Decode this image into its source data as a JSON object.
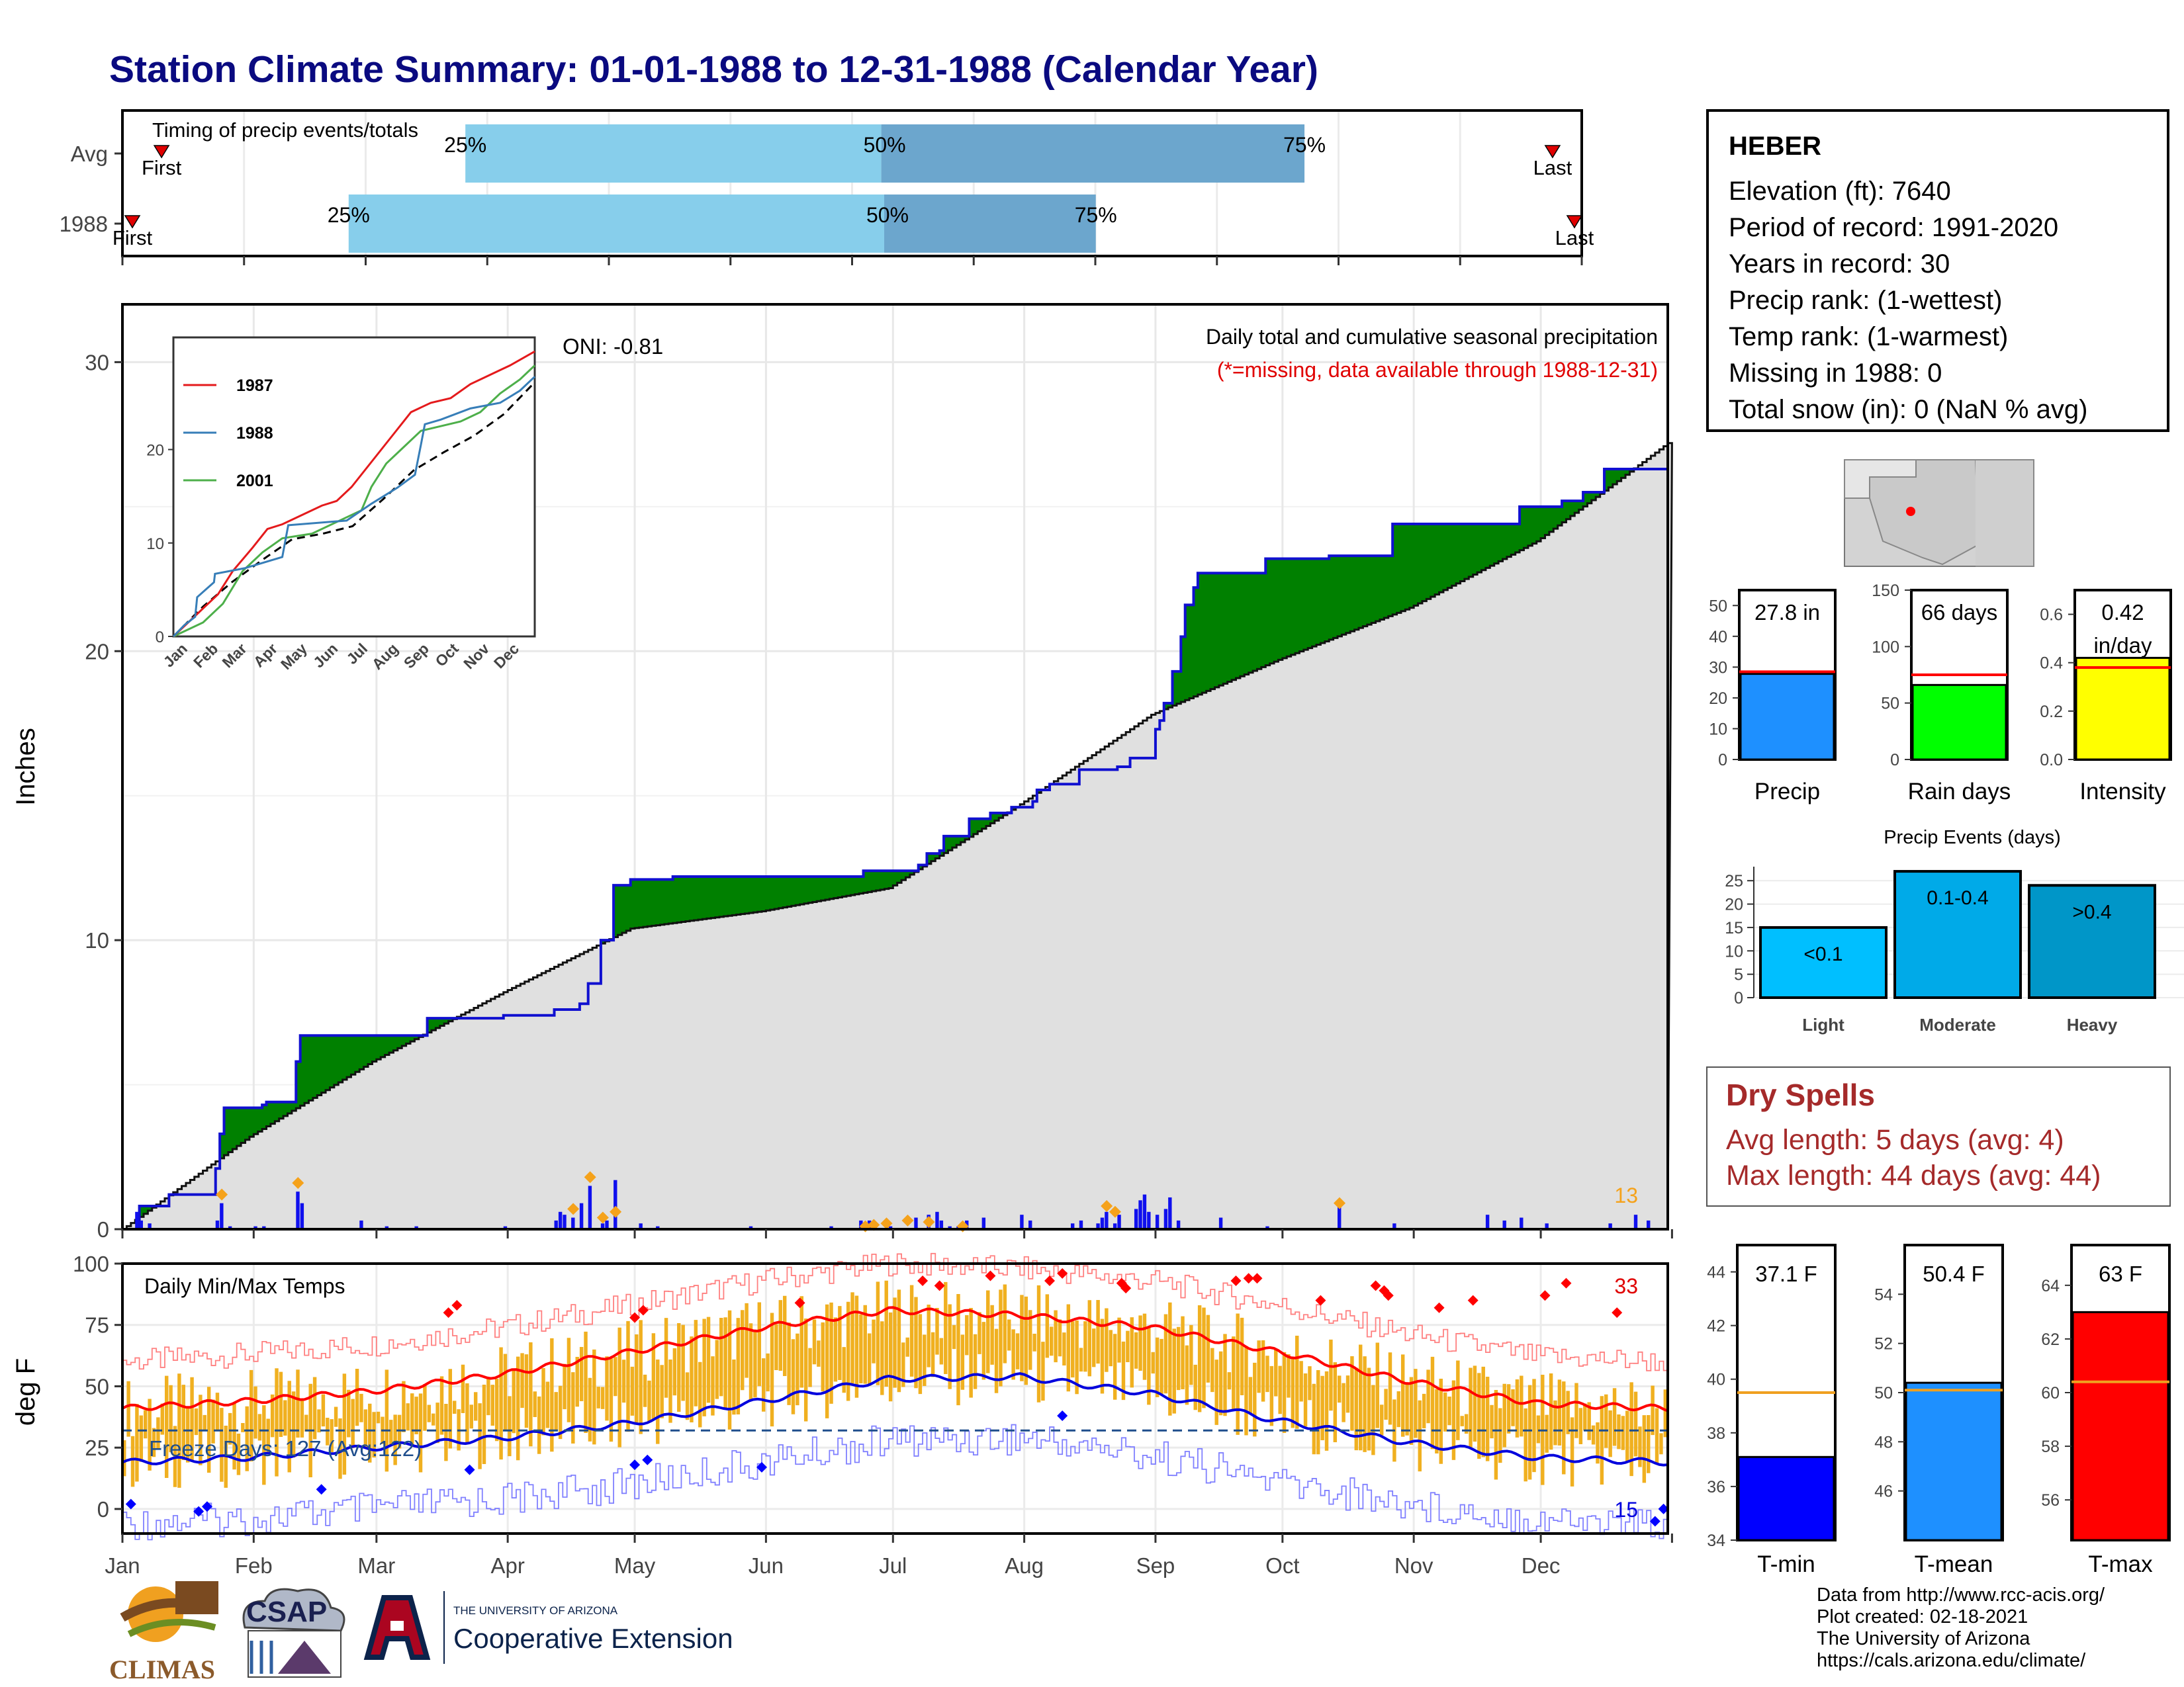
{
  "title": "Station Climate Summary: 01-01-1988 to 12-31-1988 (Calendar Year)",
  "colors": {
    "green_fill": "#008000",
    "brown_fill": "#7f5700",
    "normal_fill": "#e0e0e0",
    "blue_line": "#1010d0",
    "bar_light": "#87ceeb",
    "bar_dark": "#6ca6cd",
    "tmax": "#ff0000",
    "tmin": "#0000dd",
    "range_bar": "#f0b020"
  },
  "timing": {
    "title": "Timing of precip events/totals",
    "rows": [
      {
        "label": "Avg",
        "first": "First",
        "last": "Last",
        "p25": "25%",
        "p50": "50%",
        "p75": "75%",
        "q25": 0.235,
        "q50": 0.52,
        "q75": 0.81,
        "firstPos": 0.02,
        "lastPos": 0.98
      },
      {
        "label": "1988",
        "first": "First",
        "last": "Last",
        "p25": "25%",
        "p50": "50%",
        "p75": "75%",
        "q25": 0.155,
        "q50": 0.522,
        "q75": 0.667,
        "firstPos": 0.0,
        "lastPos": 0.995
      }
    ]
  },
  "precip_plot": {
    "ylabel": "Inches",
    "yticks": [
      "0",
      "10",
      "20",
      "30"
    ],
    "ymax": 32,
    "note_line1": "Daily total and cumulative seasonal precipitation",
    "note_line2": "(*=missing, data available through 1988-12-31)",
    "oni": "ONI: -0.81",
    "count_label": "13",
    "cum_1988": [
      [
        0,
        0
      ],
      [
        4,
        0.8
      ],
      [
        11,
        0.8
      ],
      [
        11,
        1.2
      ],
      [
        22,
        1.2
      ],
      [
        22,
        2.1
      ],
      [
        23,
        3.3
      ],
      [
        24,
        4.2
      ],
      [
        33,
        4.3
      ],
      [
        34,
        4.4
      ],
      [
        41,
        4.4
      ],
      [
        41,
        5.8
      ],
      [
        42,
        6.7
      ],
      [
        62,
        6.7
      ],
      [
        72,
        6.7
      ],
      [
        72,
        7.3
      ],
      [
        80,
        7.3
      ],
      [
        90,
        7.4
      ],
      [
        100,
        7.4
      ],
      [
        102,
        7.6
      ],
      [
        104,
        7.6
      ],
      [
        108,
        7.8
      ],
      [
        110,
        8.5
      ],
      [
        113,
        10.0
      ],
      [
        116,
        10.2
      ],
      [
        116,
        11.9
      ],
      [
        120,
        12.1
      ],
      [
        130,
        12.2
      ],
      [
        175,
        12.2
      ],
      [
        175,
        12.4
      ],
      [
        180,
        12.4
      ],
      [
        188,
        12.6
      ],
      [
        190,
        13.0
      ],
      [
        193,
        13.1
      ],
      [
        194,
        13.6
      ],
      [
        200,
        14.2
      ],
      [
        205,
        14.4
      ],
      [
        210,
        14.6
      ],
      [
        215,
        14.8
      ],
      [
        216,
        15.2
      ],
      [
        219,
        15.4
      ],
      [
        226,
        15.9
      ],
      [
        235,
        16.0
      ],
      [
        238,
        16.3
      ],
      [
        244,
        16.6
      ],
      [
        244,
        17.3
      ],
      [
        245,
        17.6
      ],
      [
        246,
        18.2
      ],
      [
        248,
        19.3
      ],
      [
        250,
        20.5
      ],
      [
        251,
        21.6
      ],
      [
        253,
        22.2
      ],
      [
        254,
        22.7
      ],
      [
        265,
        22.7
      ],
      [
        270,
        22.7
      ],
      [
        270,
        23.2
      ],
      [
        285,
        23.3
      ],
      [
        300,
        23.3
      ],
      [
        300,
        24.4
      ],
      [
        330,
        24.4
      ],
      [
        330,
        25.0
      ],
      [
        340,
        25.2
      ],
      [
        345,
        25.5
      ],
      [
        350,
        25.5
      ],
      [
        350,
        26.3
      ],
      [
        360,
        26.3
      ],
      [
        365,
        27.8
      ]
    ],
    "normal_cum": [
      [
        0,
        0
      ],
      [
        30,
        3.2
      ],
      [
        59,
        5.8
      ],
      [
        90,
        8.2
      ],
      [
        120,
        10.4
      ],
      [
        151,
        11.0
      ],
      [
        181,
        11.8
      ],
      [
        212,
        14.7
      ],
      [
        243,
        17.8
      ],
      [
        273,
        19.7
      ],
      [
        304,
        21.5
      ],
      [
        334,
        23.8
      ],
      [
        365,
        27.2
      ]
    ],
    "daily_bars": [
      [
        3,
        0.6
      ],
      [
        4,
        0.3
      ],
      [
        6,
        0.2
      ],
      [
        22,
        0.3
      ],
      [
        23,
        0.9
      ],
      [
        25,
        0.1
      ],
      [
        31,
        0.1
      ],
      [
        33,
        0.1
      ],
      [
        41,
        1.3
      ],
      [
        42,
        0.9
      ],
      [
        56,
        0.3
      ],
      [
        62,
        0.1
      ],
      [
        69,
        0.1
      ],
      [
        90,
        0.1
      ],
      [
        102,
        0.3
      ],
      [
        103,
        0.6
      ],
      [
        104,
        0.5
      ],
      [
        106,
        0.4
      ],
      [
        108,
        0.9
      ],
      [
        110,
        1.5
      ],
      [
        113,
        0.2
      ],
      [
        114,
        0.3
      ],
      [
        116,
        1.7
      ],
      [
        122,
        0.2
      ],
      [
        126,
        0.1
      ],
      [
        148,
        0.1
      ],
      [
        167,
        0.1
      ],
      [
        174,
        0.3
      ],
      [
        176,
        0.3
      ],
      [
        181,
        0.1
      ],
      [
        187,
        0.4
      ],
      [
        190,
        0.5
      ],
      [
        192,
        0.6
      ],
      [
        193,
        0.3
      ],
      [
        195,
        0.1
      ],
      [
        197,
        0.1
      ],
      [
        199,
        0.3
      ],
      [
        203,
        0.4
      ],
      [
        212,
        0.5
      ],
      [
        214,
        0.3
      ],
      [
        224,
        0.2
      ],
      [
        226,
        0.3
      ],
      [
        230,
        0.2
      ],
      [
        231,
        0.4
      ],
      [
        232,
        0.6
      ],
      [
        234,
        0.2
      ],
      [
        235,
        0.5
      ],
      [
        239,
        0.7
      ],
      [
        240,
        1.0
      ],
      [
        241,
        1.2
      ],
      [
        242,
        0.6
      ],
      [
        244,
        0.5
      ],
      [
        246,
        0.7
      ],
      [
        247,
        1.1
      ],
      [
        249,
        0.3
      ],
      [
        259,
        0.4
      ],
      [
        270,
        0.1
      ],
      [
        287,
        0.8
      ],
      [
        300,
        0.2
      ],
      [
        322,
        0.5
      ],
      [
        326,
        0.3
      ],
      [
        330,
        0.4
      ],
      [
        336,
        0.2
      ],
      [
        351,
        0.2
      ],
      [
        357,
        0.5
      ],
      [
        360,
        0.3
      ]
    ],
    "missing_marks": [
      [
        23,
        1.2
      ],
      [
        41,
        1.6
      ],
      [
        106,
        0.7
      ],
      [
        110,
        1.8
      ],
      [
        113,
        0.4
      ],
      [
        116,
        0.6
      ],
      [
        175,
        0.1
      ],
      [
        177,
        0.15
      ],
      [
        180,
        0.2
      ],
      [
        185,
        0.3
      ],
      [
        190,
        0.25
      ],
      [
        198,
        0.1
      ],
      [
        232,
        0.8
      ],
      [
        234,
        0.6
      ],
      [
        287,
        0.9
      ]
    ]
  },
  "inset": {
    "yticks": [
      "0",
      "10",
      "20"
    ],
    "months": [
      "Jan",
      "Feb",
      "Mar",
      "Apr",
      "May",
      "Jun",
      "Jul",
      "Aug",
      "Sep",
      "Oct",
      "Nov",
      "Dec"
    ],
    "legend": [
      {
        "year": "1987",
        "color": "#e41a1c"
      },
      {
        "year": "1988",
        "color": "#377eb8"
      },
      {
        "year": "2001",
        "color": "#4daf4a"
      }
    ],
    "series": {
      "1987": [
        [
          0,
          0
        ],
        [
          20,
          2
        ],
        [
          45,
          4.5
        ],
        [
          60,
          7
        ],
        [
          80,
          9.5
        ],
        [
          95,
          11.5
        ],
        [
          110,
          12
        ],
        [
          130,
          13
        ],
        [
          150,
          14
        ],
        [
          165,
          14.5
        ],
        [
          180,
          16
        ],
        [
          195,
          18
        ],
        [
          210,
          20
        ],
        [
          225,
          22
        ],
        [
          240,
          24
        ],
        [
          260,
          25
        ],
        [
          280,
          25.5
        ],
        [
          300,
          27
        ],
        [
          320,
          28
        ],
        [
          340,
          29
        ],
        [
          365,
          30.5
        ]
      ],
      "1988": [
        [
          0,
          0
        ],
        [
          11,
          1.2
        ],
        [
          22,
          2.1
        ],
        [
          24,
          4.2
        ],
        [
          41,
          5.8
        ],
        [
          42,
          6.7
        ],
        [
          72,
          7.3
        ],
        [
          110,
          8.5
        ],
        [
          116,
          11.9
        ],
        [
          175,
          12.4
        ],
        [
          200,
          14.2
        ],
        [
          226,
          15.9
        ],
        [
          244,
          17.3
        ],
        [
          250,
          20.5
        ],
        [
          254,
          22.7
        ],
        [
          270,
          23.2
        ],
        [
          300,
          24.4
        ],
        [
          330,
          25.0
        ],
        [
          350,
          26.3
        ],
        [
          365,
          27.8
        ]
      ],
      "2001": [
        [
          0,
          0
        ],
        [
          30,
          1.5
        ],
        [
          50,
          3.5
        ],
        [
          70,
          7
        ],
        [
          90,
          9
        ],
        [
          110,
          10.5
        ],
        [
          140,
          11
        ],
        [
          170,
          12.5
        ],
        [
          190,
          13.5
        ],
        [
          200,
          16
        ],
        [
          215,
          18.5
        ],
        [
          230,
          20
        ],
        [
          250,
          22
        ],
        [
          270,
          22.5
        ],
        [
          290,
          23
        ],
        [
          310,
          24
        ],
        [
          330,
          26
        ],
        [
          350,
          27.5
        ],
        [
          365,
          29
        ]
      ],
      "normal": [
        [
          0,
          0
        ],
        [
          30,
          3.2
        ],
        [
          59,
          5.8
        ],
        [
          90,
          8.2
        ],
        [
          120,
          10.4
        ],
        [
          151,
          11.0
        ],
        [
          181,
          11.8
        ],
        [
          212,
          14.7
        ],
        [
          243,
          17.8
        ],
        [
          273,
          19.7
        ],
        [
          304,
          21.5
        ],
        [
          334,
          23.8
        ],
        [
          365,
          27.2
        ]
      ]
    }
  },
  "temp_plot": {
    "ylabel": "deg F",
    "title": "Daily Min/Max Temps",
    "yticks": [
      "0",
      "25",
      "50",
      "75",
      "100"
    ],
    "freeze_label": "Freeze Days: 127 (Avg:122)",
    "freeze_line": 32,
    "hot_count": "33",
    "cold_count": "15",
    "months": [
      "Jan",
      "Feb",
      "Mar",
      "Apr",
      "May",
      "Jun",
      "Jul",
      "Aug",
      "Sep",
      "Oct",
      "Nov",
      "Dec"
    ],
    "tmax_avg_pts": [
      [
        0,
        41
      ],
      [
        30,
        44
      ],
      [
        59,
        48
      ],
      [
        90,
        55
      ],
      [
        120,
        64
      ],
      [
        151,
        74
      ],
      [
        181,
        81
      ],
      [
        212,
        79
      ],
      [
        243,
        74
      ],
      [
        273,
        64
      ],
      [
        304,
        52
      ],
      [
        334,
        43
      ],
      [
        365,
        41
      ]
    ],
    "tmin_avg_pts": [
      [
        0,
        19
      ],
      [
        30,
        21
      ],
      [
        59,
        25
      ],
      [
        90,
        29
      ],
      [
        120,
        35
      ],
      [
        151,
        44
      ],
      [
        181,
        53
      ],
      [
        212,
        54
      ],
      [
        243,
        47
      ],
      [
        273,
        36
      ],
      [
        304,
        27
      ],
      [
        334,
        21
      ],
      [
        365,
        19
      ]
    ]
  },
  "station": {
    "name": "HEBER",
    "elevation": "Elevation (ft): 7640",
    "period": "Period of record: 1991-2020",
    "years": "Years in record: 30",
    "precip_rank": "Precip rank:  (1-wettest)",
    "temp_rank": "Temp rank:  (1-warmest)",
    "missing": "Missing in 1988: 0",
    "snow": "Total snow (in): 0 (NaN % avg)"
  },
  "precip_bars": [
    {
      "label": "Precip",
      "value_text": "27.8 in",
      "value": 27.8,
      "avg": 28.5,
      "max": 55,
      "ticks": [
        "0",
        "10",
        "20",
        "30",
        "40",
        "50"
      ],
      "color": "#1e90ff"
    },
    {
      "label": "Rain days",
      "value_text": "66 days",
      "value": 66,
      "avg": 75,
      "max": 150,
      "ticks": [
        "0",
        "50",
        "100",
        "150"
      ],
      "color": "#00ff00"
    },
    {
      "label": "Intensity",
      "value_text": "0.42",
      "value_text2": "in/day",
      "value": 0.42,
      "avg": 0.38,
      "max": 0.7,
      "ticks": [
        "0.0",
        "0.2",
        "0.4",
        "0.6"
      ],
      "color": "#ffff00"
    }
  ],
  "events": {
    "title": "Precip Events (days)",
    "ticks": [
      "0",
      "5",
      "10",
      "15",
      "20",
      "25"
    ],
    "bars": [
      {
        "cat": "Light",
        "label": "<0.1",
        "value": 15,
        "color": "#00bfff"
      },
      {
        "cat": "Moderate",
        "label": "0.1-0.4",
        "value": 27,
        "color": "#00aae8"
      },
      {
        "cat": "Heavy",
        "label": ">0.4",
        "value": 24,
        "color": "#0096c8"
      }
    ]
  },
  "dry": {
    "title": "Dry Spells",
    "avg": "Avg length: 5 days (avg: 4)",
    "max": "Max length: 44 days (avg: 44)"
  },
  "temp_bars": [
    {
      "label": "T-min",
      "value_text": "37.1 F",
      "value": 37.1,
      "avg": 39.5,
      "min": 34,
      "max": 45,
      "ticks": [
        "34",
        "36",
        "38",
        "40",
        "42",
        "44"
      ],
      "color": "#0000ff"
    },
    {
      "label": "T-mean",
      "value_text": "50.4 F",
      "value": 50.4,
      "avg": 50.1,
      "min": 44,
      "max": 56,
      "ticks": [
        "46",
        "48",
        "50",
        "52",
        "54"
      ],
      "color": "#1e90ff"
    },
    {
      "label": "T-max",
      "value_text": "63 F",
      "value": 63.0,
      "avg": 60.4,
      "min": 54.5,
      "max": 65.5,
      "ticks": [
        "56",
        "58",
        "60",
        "62",
        "64"
      ],
      "color": "#ff0000"
    }
  ],
  "logos": {
    "climas": "CLIMAS",
    "csap": "CSAP",
    "ua_line1": "THE UNIVERSITY OF ARIZONA",
    "ua_line2": "Cooperative Extension"
  },
  "credits": [
    "Data from http://www.rcc-acis.org/",
    "Plot created: 02-18-2021",
    "The University of Arizona",
    "https://cals.arizona.edu/climate/"
  ]
}
